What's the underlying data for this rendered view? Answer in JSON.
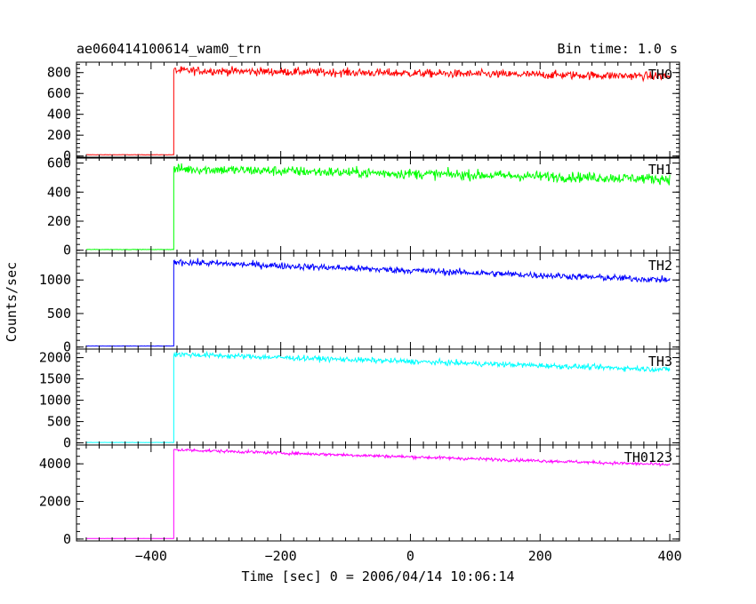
{
  "title": "ae060414100614_wam0_trn",
  "bin_time": "Bin time: 1.0 s",
  "chart_data": {
    "type": "line",
    "title": "ae060414100614_wam0_trn",
    "xlabel": "Time [sec] 0 = 2006/04/14 10:06:14",
    "ylabel": "Counts/sec",
    "xlim": [
      -515,
      415
    ],
    "x_ticks": [
      -400,
      -200,
      0,
      200,
      400
    ],
    "x_tick_labels": [
      "−400",
      "−200",
      "0",
      "200",
      "400"
    ],
    "step_time": -365,
    "series_start": -500,
    "series_end": 400,
    "panels": [
      {
        "name": "TH0",
        "color": "#ff0000",
        "ylim": [
          -20,
          900
        ],
        "ticks": [
          0,
          200,
          400,
          600,
          800
        ],
        "tick_labels": [
          "0",
          "200",
          "400",
          "600",
          "800"
        ],
        "pre_level": 12,
        "start_level": 820,
        "end_level": 765,
        "noise": 28
      },
      {
        "name": "TH1",
        "color": "#00ff00",
        "ylim": [
          -20,
          640
        ],
        "ticks": [
          0,
          200,
          400,
          600
        ],
        "tick_labels": [
          "0",
          "200",
          "400",
          "600"
        ],
        "pre_level": 5,
        "start_level": 560,
        "end_level": 490,
        "noise": 25
      },
      {
        "name": "TH2",
        "color": "#0000ff",
        "ylim": [
          -30,
          1400
        ],
        "ticks": [
          0,
          500,
          1000
        ],
        "tick_labels": [
          "0",
          "500",
          "1000"
        ],
        "pre_level": 15,
        "start_level": 1270,
        "end_level": 1000,
        "noise": 35
      },
      {
        "name": "TH3",
        "color": "#00ffff",
        "ylim": [
          -50,
          2200
        ],
        "ticks": [
          0,
          500,
          1000,
          1500,
          2000
        ],
        "tick_labels": [
          "0",
          "500",
          "1000",
          "1500",
          "2000"
        ],
        "pre_level": 10,
        "start_level": 2080,
        "end_level": 1720,
        "noise": 45
      },
      {
        "name": "TH0123",
        "color": "#ff00ff",
        "ylim": [
          -100,
          5000
        ],
        "ticks": [
          0,
          2000,
          4000
        ],
        "tick_labels": [
          "0",
          "2000",
          "4000"
        ],
        "pre_level": 30,
        "start_level": 4750,
        "end_level": 3950,
        "noise": 60
      }
    ]
  }
}
